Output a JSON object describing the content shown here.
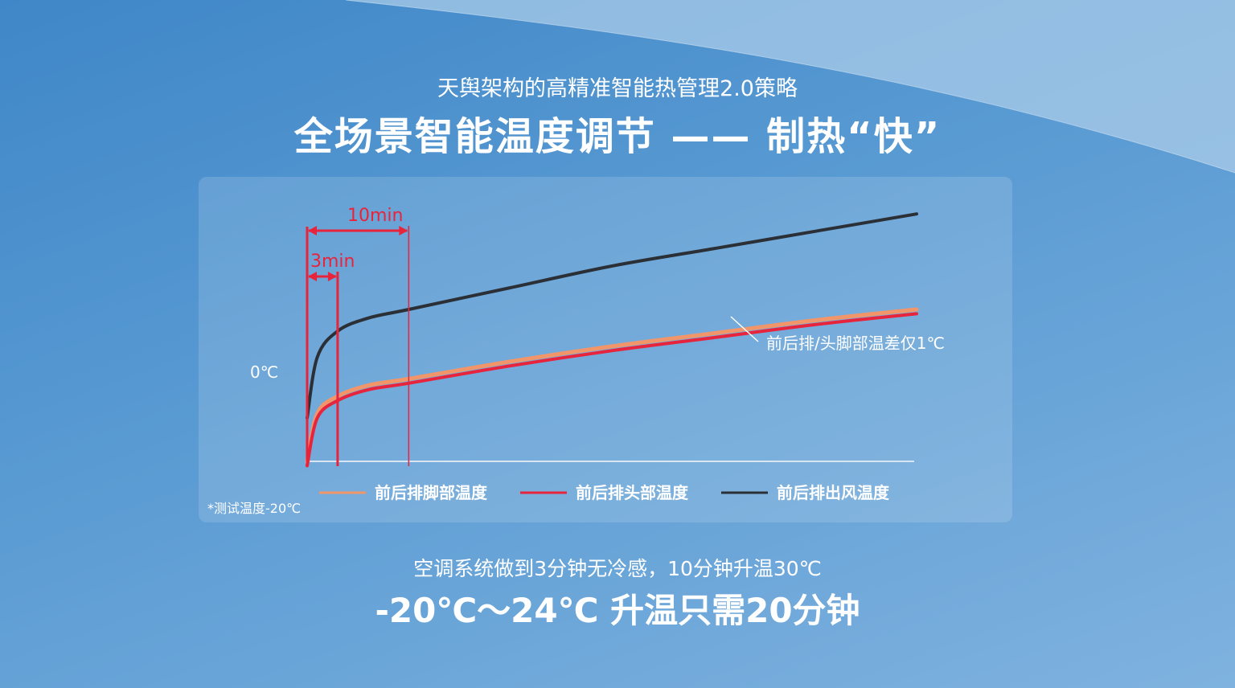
{
  "header": {
    "subtitle": "天舆架构的高精准智能热管理2.0策略",
    "title": "全场景智能温度调节 —— 制热“快”"
  },
  "chart_data": {
    "type": "line",
    "ylabel_tick": "0℃",
    "x_markers": [
      {
        "label": "3min",
        "x": 3
      },
      {
        "label": "10min",
        "x": 10
      }
    ],
    "xlim": [
      0,
      60
    ],
    "ylim": [
      -20,
      40
    ],
    "series": [
      {
        "name": "前后排脚部温度",
        "color": "#f2966a",
        "x": [
          0,
          1,
          3,
          6,
          10,
          20,
          30,
          40,
          50,
          60
        ],
        "y": [
          -20,
          -9,
          -5,
          -2.5,
          -1,
          3,
          6.5,
          9.5,
          12.5,
          15
        ]
      },
      {
        "name": "前后排头部温度",
        "color": "#e8243c",
        "x": [
          0,
          1,
          3,
          6,
          10,
          20,
          30,
          40,
          50,
          60
        ],
        "y": [
          -21,
          -10,
          -6,
          -3.5,
          -2,
          2,
          5.5,
          8.5,
          11.5,
          14
        ]
      },
      {
        "name": "前后排出风温度",
        "color": "#2b2f36",
        "x": [
          0,
          1,
          3,
          6,
          10,
          20,
          30,
          40,
          50,
          60
        ],
        "y": [
          -10,
          4,
          10,
          13,
          15,
          20,
          25,
          29,
          33,
          37
        ]
      }
    ],
    "annotation": "前后排/头脚部温差仅1℃",
    "footnote": "*测试温度-20℃"
  },
  "footer": {
    "line1": "空调系统做到3分钟无冷感，10分钟升温30℃",
    "line2": "-20℃～24℃ 升温只需20分钟"
  },
  "colors": {
    "marker_red": "#e8243c",
    "axis": "#d9e6f2"
  }
}
